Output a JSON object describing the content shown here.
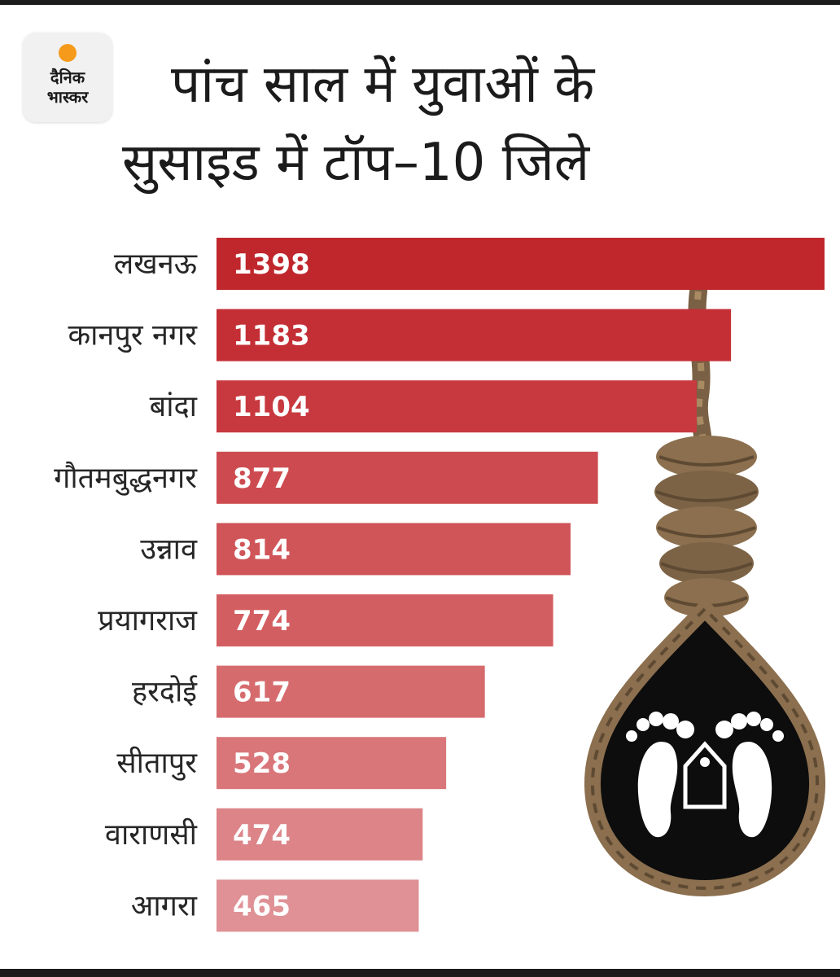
{
  "logo": {
    "line1": "दैनिक",
    "line2": "भास्कर"
  },
  "title_line1": "पांच साल में युवाओं के",
  "title_line2": "सुसाइड में टॉप–10 जिले",
  "chart_data": {
    "type": "bar",
    "orientation": "horizontal",
    "title": "पांच साल में युवाओं के सुसाइड में टॉप–10 जिले",
    "categories": [
      "लखनऊ",
      "कानपुर नगर",
      "बांदा",
      "गौतमबुद्धनगर",
      "उन्नाव",
      "प्रयागराज",
      "हरदोई",
      "सीतापुर",
      "वाराणसी",
      "आगरा"
    ],
    "values": [
      1398,
      1183,
      1104,
      877,
      814,
      774,
      617,
      528,
      474,
      465
    ],
    "xlim": [
      0,
      1398
    ],
    "grid": false,
    "legend": "none",
    "bar_colors": [
      "#c0272d",
      "#c42f35",
      "#c8393f",
      "#cd4b50",
      "#d05558",
      "#d35e61",
      "#d66b6e",
      "#d97679",
      "#dc8488",
      "#df9195"
    ]
  },
  "colors": {
    "rope": "#8b6f4e",
    "rope_dark": "#5e4a33",
    "drop": "#0d0d0d",
    "feet": "#ffffff"
  },
  "icons": [
    "noose-icon",
    "feet-icon",
    "tag-icon"
  ]
}
